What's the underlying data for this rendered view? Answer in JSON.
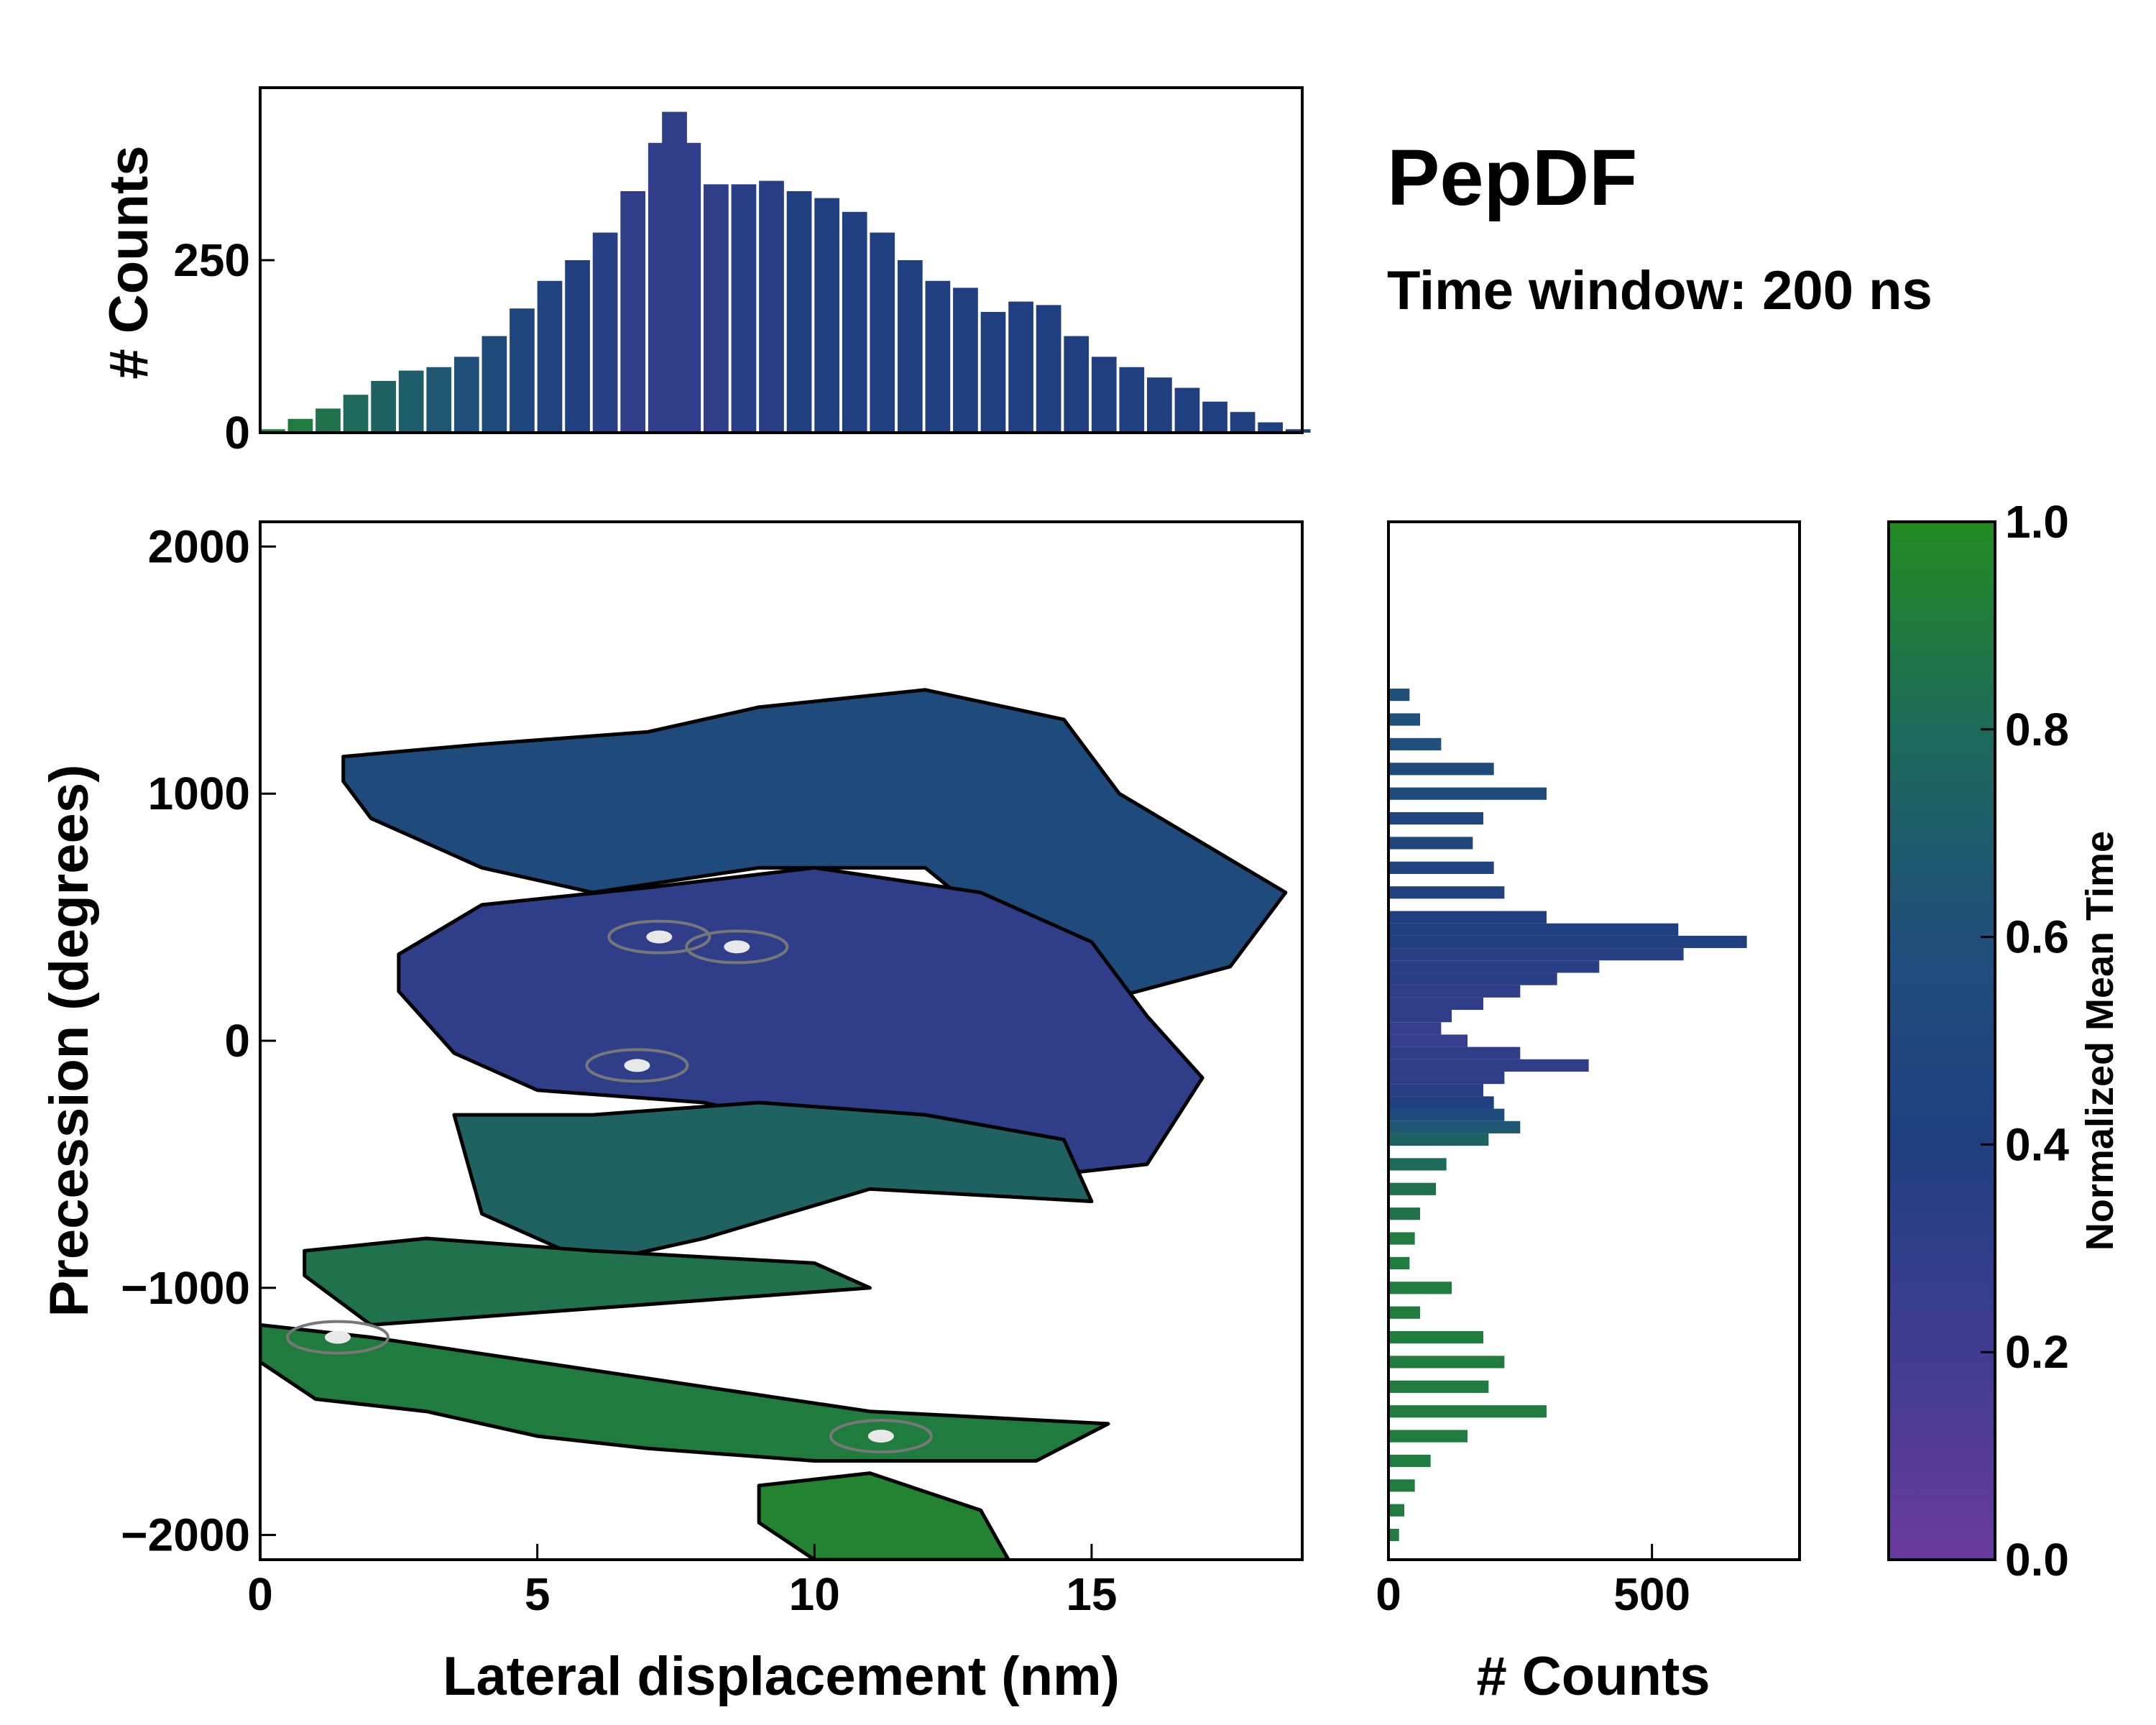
{
  "header": {
    "title": "PepDF",
    "subtitle": "Time window: 200 ns"
  },
  "colors": {
    "purple": "#6a3a9e",
    "indigo": "#3f3c92",
    "navy": "#203f80",
    "blue": "#1f4f7a",
    "teal": "#1d6a5a",
    "green": "#20872a",
    "bright_green": "#238b22"
  },
  "chart_data": [
    {
      "id": "top-histogram",
      "type": "bar",
      "ylabel": "# Counts",
      "xlim": [
        0,
        18.8
      ],
      "ylim": [
        0,
        500
      ],
      "yticks": [
        {
          "v": 0,
          "label": "0"
        },
        {
          "v": 250,
          "label": "250"
        }
      ],
      "x": [
        0.0,
        0.5,
        1.0,
        1.5,
        2.0,
        2.5,
        3.0,
        3.5,
        4.0,
        4.5,
        5.0,
        5.5,
        6.0,
        6.5,
        7.0,
        7.25,
        7.5,
        8.0,
        8.5,
        9.0,
        9.5,
        10.0,
        10.5,
        11.0,
        11.5,
        12.0,
        12.5,
        13.0,
        13.5,
        14.0,
        14.5,
        15.0,
        15.5,
        16.0,
        16.5,
        17.0,
        17.5,
        18.0,
        18.5
      ],
      "values": [
        5,
        20,
        35,
        55,
        75,
        90,
        95,
        110,
        140,
        180,
        220,
        250,
        290,
        350,
        420,
        465,
        420,
        360,
        360,
        365,
        350,
        340,
        320,
        290,
        250,
        220,
        210,
        175,
        190,
        185,
        140,
        110,
        95,
        80,
        65,
        45,
        30,
        15,
        5
      ],
      "mean_time": [
        0.95,
        0.9,
        0.85,
        0.8,
        0.75,
        0.7,
        0.65,
        0.6,
        0.55,
        0.5,
        0.45,
        0.4,
        0.35,
        0.3,
        0.3,
        0.3,
        0.3,
        0.3,
        0.35,
        0.35,
        0.4,
        0.4,
        0.4,
        0.4,
        0.4,
        0.4,
        0.4,
        0.4,
        0.4,
        0.4,
        0.4,
        0.4,
        0.4,
        0.4,
        0.4,
        0.4,
        0.4,
        0.4,
        0.4
      ]
    },
    {
      "id": "main-2d-histogram",
      "type": "heatmap",
      "xlabel": "Lateral displacement (nm)",
      "ylabel": "Precession (degrees)",
      "xlim": [
        0,
        18.8
      ],
      "ylim": [
        -2100,
        2100
      ],
      "xticks": [
        {
          "v": 0,
          "label": "0"
        },
        {
          "v": 5,
          "label": "5"
        },
        {
          "v": 10,
          "label": "10"
        },
        {
          "v": 15,
          "label": "15"
        }
      ],
      "yticks": [
        {
          "v": 2000,
          "label": "2000"
        },
        {
          "v": 1000,
          "label": "1000"
        },
        {
          "v": 0,
          "label": "0"
        },
        {
          "v": -1000,
          "label": "−1000"
        },
        {
          "v": -2000,
          "label": "−2000"
        }
      ],
      "regions": [
        {
          "name": "upper-band",
          "mean_time": 0.55,
          "points": [
            [
              1.5,
              1150
            ],
            [
              4,
              1200
            ],
            [
              7,
              1250
            ],
            [
              9,
              1350
            ],
            [
              12,
              1420
            ],
            [
              14.5,
              1300
            ],
            [
              15.5,
              1000
            ],
            [
              17,
              800
            ],
            [
              18.5,
              600
            ],
            [
              17.5,
              300
            ],
            [
              15,
              150
            ],
            [
              12,
              700
            ],
            [
              9,
              700
            ],
            [
              6,
              600
            ],
            [
              4,
              700
            ],
            [
              2,
              900
            ],
            [
              1.5,
              1050
            ]
          ]
        },
        {
          "name": "central-band",
          "mean_time": 0.3,
          "points": [
            [
              2.5,
              350
            ],
            [
              4,
              550
            ],
            [
              7,
              620
            ],
            [
              10,
              700
            ],
            [
              13,
              600
            ],
            [
              15,
              400
            ],
            [
              16,
              100
            ],
            [
              17,
              -150
            ],
            [
              16,
              -500
            ],
            [
              14,
              -550
            ],
            [
              12,
              -400
            ],
            [
              10,
              -350
            ],
            [
              8,
              -250
            ],
            [
              5,
              -200
            ],
            [
              3.5,
              -50
            ],
            [
              2.5,
              200
            ]
          ]
        },
        {
          "name": "lower-upper-band",
          "mean_time": 0.75,
          "points": [
            [
              3.5,
              -300
            ],
            [
              6,
              -300
            ],
            [
              9,
              -250
            ],
            [
              12,
              -300
            ],
            [
              14.5,
              -400
            ],
            [
              15,
              -650
            ],
            [
              11,
              -600
            ],
            [
              8,
              -800
            ],
            [
              6,
              -900
            ],
            [
              4,
              -700
            ]
          ]
        },
        {
          "name": "green-band-1",
          "mean_time": 0.85,
          "points": [
            [
              0.8,
              -850
            ],
            [
              3,
              -800
            ],
            [
              6,
              -850
            ],
            [
              10,
              -900
            ],
            [
              11,
              -1000
            ],
            [
              8,
              -1050
            ],
            [
              5,
              -1100
            ],
            [
              2,
              -1150
            ],
            [
              0.8,
              -950
            ]
          ]
        },
        {
          "name": "green-band-2",
          "mean_time": 0.9,
          "points": [
            [
              0,
              -1150
            ],
            [
              2,
              -1200
            ],
            [
              5,
              -1300
            ],
            [
              8,
              -1400
            ],
            [
              11,
              -1500
            ],
            [
              15.3,
              -1550
            ],
            [
              14,
              -1700
            ],
            [
              10,
              -1700
            ],
            [
              7,
              -1650
            ],
            [
              5,
              -1600
            ],
            [
              3,
              -1500
            ],
            [
              1,
              -1450
            ],
            [
              0,
              -1300
            ]
          ]
        },
        {
          "name": "green-band-3",
          "mean_time": 0.95,
          "points": [
            [
              9,
              -1800
            ],
            [
              11,
              -1750
            ],
            [
              13,
              -1900
            ],
            [
              13.5,
              -2100
            ],
            [
              10,
              -2100
            ],
            [
              9,
              -1950
            ]
          ]
        }
      ],
      "density_peaks": [
        {
          "x": 7.2,
          "y": 420,
          "label": "peak-1"
        },
        {
          "x": 8.6,
          "y": 380,
          "label": "peak-2"
        },
        {
          "x": 6.8,
          "y": -100,
          "label": "peak-3"
        },
        {
          "x": 11.2,
          "y": -1600,
          "label": "peak-4"
        },
        {
          "x": 1.4,
          "y": -1200,
          "label": "peak-5"
        }
      ]
    },
    {
      "id": "right-histogram",
      "type": "bar",
      "orientation": "horizontal",
      "xlabel": "# Counts",
      "xlim": [
        0,
        780
      ],
      "ylim": [
        -2100,
        2100
      ],
      "xticks": [
        {
          "v": 0,
          "label": "0"
        },
        {
          "v": 500,
          "label": "500"
        }
      ],
      "y": [
        1400,
        1300,
        1200,
        1100,
        1000,
        900,
        800,
        700,
        600,
        500,
        450,
        400,
        350,
        300,
        250,
        200,
        150,
        100,
        50,
        0,
        -50,
        -100,
        -150,
        -200,
        -250,
        -300,
        -350,
        -400,
        -500,
        -600,
        -700,
        -800,
        -900,
        -1000,
        -1100,
        -1200,
        -1300,
        -1400,
        -1500,
        -1600,
        -1700,
        -1800,
        -1900,
        -2000
      ],
      "values": [
        40,
        60,
        100,
        200,
        300,
        180,
        160,
        200,
        220,
        300,
        550,
        680,
        560,
        400,
        320,
        250,
        180,
        120,
        100,
        150,
        250,
        380,
        220,
        180,
        200,
        220,
        250,
        190,
        110,
        90,
        60,
        50,
        40,
        120,
        60,
        180,
        220,
        190,
        300,
        150,
        80,
        50,
        30,
        20
      ],
      "mean_time": [
        0.6,
        0.6,
        0.6,
        0.55,
        0.55,
        0.5,
        0.5,
        0.45,
        0.45,
        0.4,
        0.4,
        0.4,
        0.35,
        0.35,
        0.35,
        0.3,
        0.3,
        0.3,
        0.25,
        0.25,
        0.3,
        0.3,
        0.3,
        0.35,
        0.4,
        0.55,
        0.65,
        0.75,
        0.8,
        0.85,
        0.85,
        0.9,
        0.9,
        0.9,
        0.9,
        0.9,
        0.9,
        0.9,
        0.9,
        0.9,
        0.9,
        0.9,
        0.9,
        0.9
      ]
    },
    {
      "id": "colorbar",
      "type": "colorbar",
      "label": "Normalized Mean Time",
      "range": [
        0.0,
        1.0
      ],
      "ticks": [
        {
          "v": 0.0,
          "label": "0.0"
        },
        {
          "v": 0.2,
          "label": "0.2"
        },
        {
          "v": 0.4,
          "label": "0.4"
        },
        {
          "v": 0.6,
          "label": "0.6"
        },
        {
          "v": 0.8,
          "label": "0.8"
        },
        {
          "v": 1.0,
          "label": "1.0"
        }
      ],
      "stops": [
        "#6a3a9e",
        "#3f3c92",
        "#203f80",
        "#1f4f7a",
        "#1d6a5a",
        "#238b22"
      ]
    }
  ]
}
